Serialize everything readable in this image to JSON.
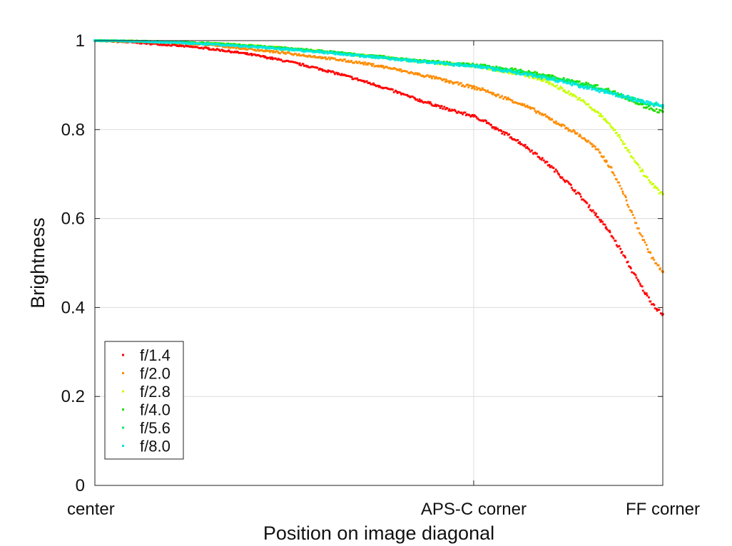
{
  "chart_data": {
    "type": "scatter",
    "title": "",
    "xlabel": "Position on image diagonal",
    "ylabel": "Brightness",
    "xlim": [
      0,
      1
    ],
    "ylim": [
      0,
      1
    ],
    "x_ticks": [
      {
        "value": 0,
        "label": "center"
      },
      {
        "value": 0.667,
        "label": "APS-C corner"
      },
      {
        "value": 1,
        "label": "FF corner"
      }
    ],
    "y_ticks": [
      {
        "value": 0,
        "label": "0"
      },
      {
        "value": 0.2,
        "label": "0.2"
      },
      {
        "value": 0.4,
        "label": "0.4"
      },
      {
        "value": 0.6,
        "label": "0.6"
      },
      {
        "value": 0.8,
        "label": "0.8"
      },
      {
        "value": 1,
        "label": "1"
      }
    ],
    "grid": true,
    "legend_position": "bottom-left",
    "x": [
      0,
      0.1,
      0.2,
      0.3,
      0.4,
      0.5,
      0.6,
      0.667,
      0.7,
      0.8,
      0.9,
      1.0
    ],
    "series": [
      {
        "name": "f/1.4",
        "color": "#ff0000",
        "values": [
          1.0,
          0.993,
          0.982,
          0.963,
          0.935,
          0.898,
          0.855,
          0.83,
          0.805,
          0.72,
          0.58,
          0.385
        ]
      },
      {
        "name": "f/2.0",
        "color": "#ff8c00",
        "values": [
          1.0,
          0.997,
          0.99,
          0.977,
          0.962,
          0.943,
          0.916,
          0.895,
          0.88,
          0.825,
          0.73,
          0.48
        ]
      },
      {
        "name": "f/2.8",
        "color": "#c8ff00",
        "values": [
          1.0,
          0.998,
          0.994,
          0.986,
          0.976,
          0.963,
          0.95,
          0.943,
          0.935,
          0.905,
          0.82,
          0.655
        ]
      },
      {
        "name": "f/4.0",
        "color": "#22dd00",
        "values": [
          1.0,
          0.998,
          0.994,
          0.986,
          0.976,
          0.964,
          0.952,
          0.945,
          0.94,
          0.92,
          0.89,
          0.84
        ]
      },
      {
        "name": "f/5.6",
        "color": "#00ee66",
        "values": [
          1.0,
          0.998,
          0.993,
          0.985,
          0.975,
          0.963,
          0.951,
          0.944,
          0.938,
          0.917,
          0.887,
          0.852
        ]
      },
      {
        "name": "f/8.0",
        "color": "#00e6e6",
        "values": [
          1.0,
          0.997,
          0.992,
          0.984,
          0.974,
          0.962,
          0.95,
          0.943,
          0.936,
          0.914,
          0.884,
          0.855
        ]
      }
    ]
  }
}
